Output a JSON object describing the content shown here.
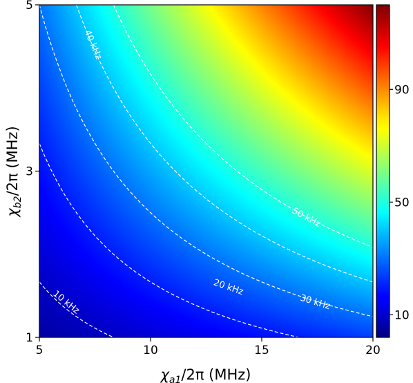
{
  "chart_data": {
    "type": "heatmap",
    "x": {
      "label_symbol": "χ",
      "label_sub": "a1",
      "label_rest": "/2π (MHz)",
      "range": [
        5,
        20
      ],
      "ticks": [
        5,
        10,
        15,
        20
      ]
    },
    "y": {
      "label_symbol": "χ",
      "label_sub": "b2",
      "label_rest": "/2π (MHz)",
      "range": [
        1,
        5
      ],
      "ticks": [
        1,
        3,
        5
      ]
    },
    "colorbar": {
      "range": [
        2,
        120
      ],
      "ticks": [
        10,
        50,
        90
      ],
      "colormap": "jet"
    },
    "z_model": {
      "form": "z = k * x * y",
      "k": 1.2
    },
    "contours": [
      {
        "level": 10,
        "label": "10 kHz",
        "label_at": [
          6.2,
          1.42
        ]
      },
      {
        "level": 20,
        "label": "20 kHz",
        "label_at": [
          13.5,
          1.6
        ]
      },
      {
        "level": 30,
        "label": "30 kHz",
        "label_at": [
          17.4,
          1.42
        ]
      },
      {
        "level": 40,
        "label": "40 kHz",
        "label_at": [
          7.4,
          4.52
        ]
      },
      {
        "level": 50,
        "label": "50 kHz",
        "label_at": [
          17.0,
          2.44
        ]
      }
    ],
    "contour_color": "#ffffff",
    "title": "",
    "grid": false
  }
}
